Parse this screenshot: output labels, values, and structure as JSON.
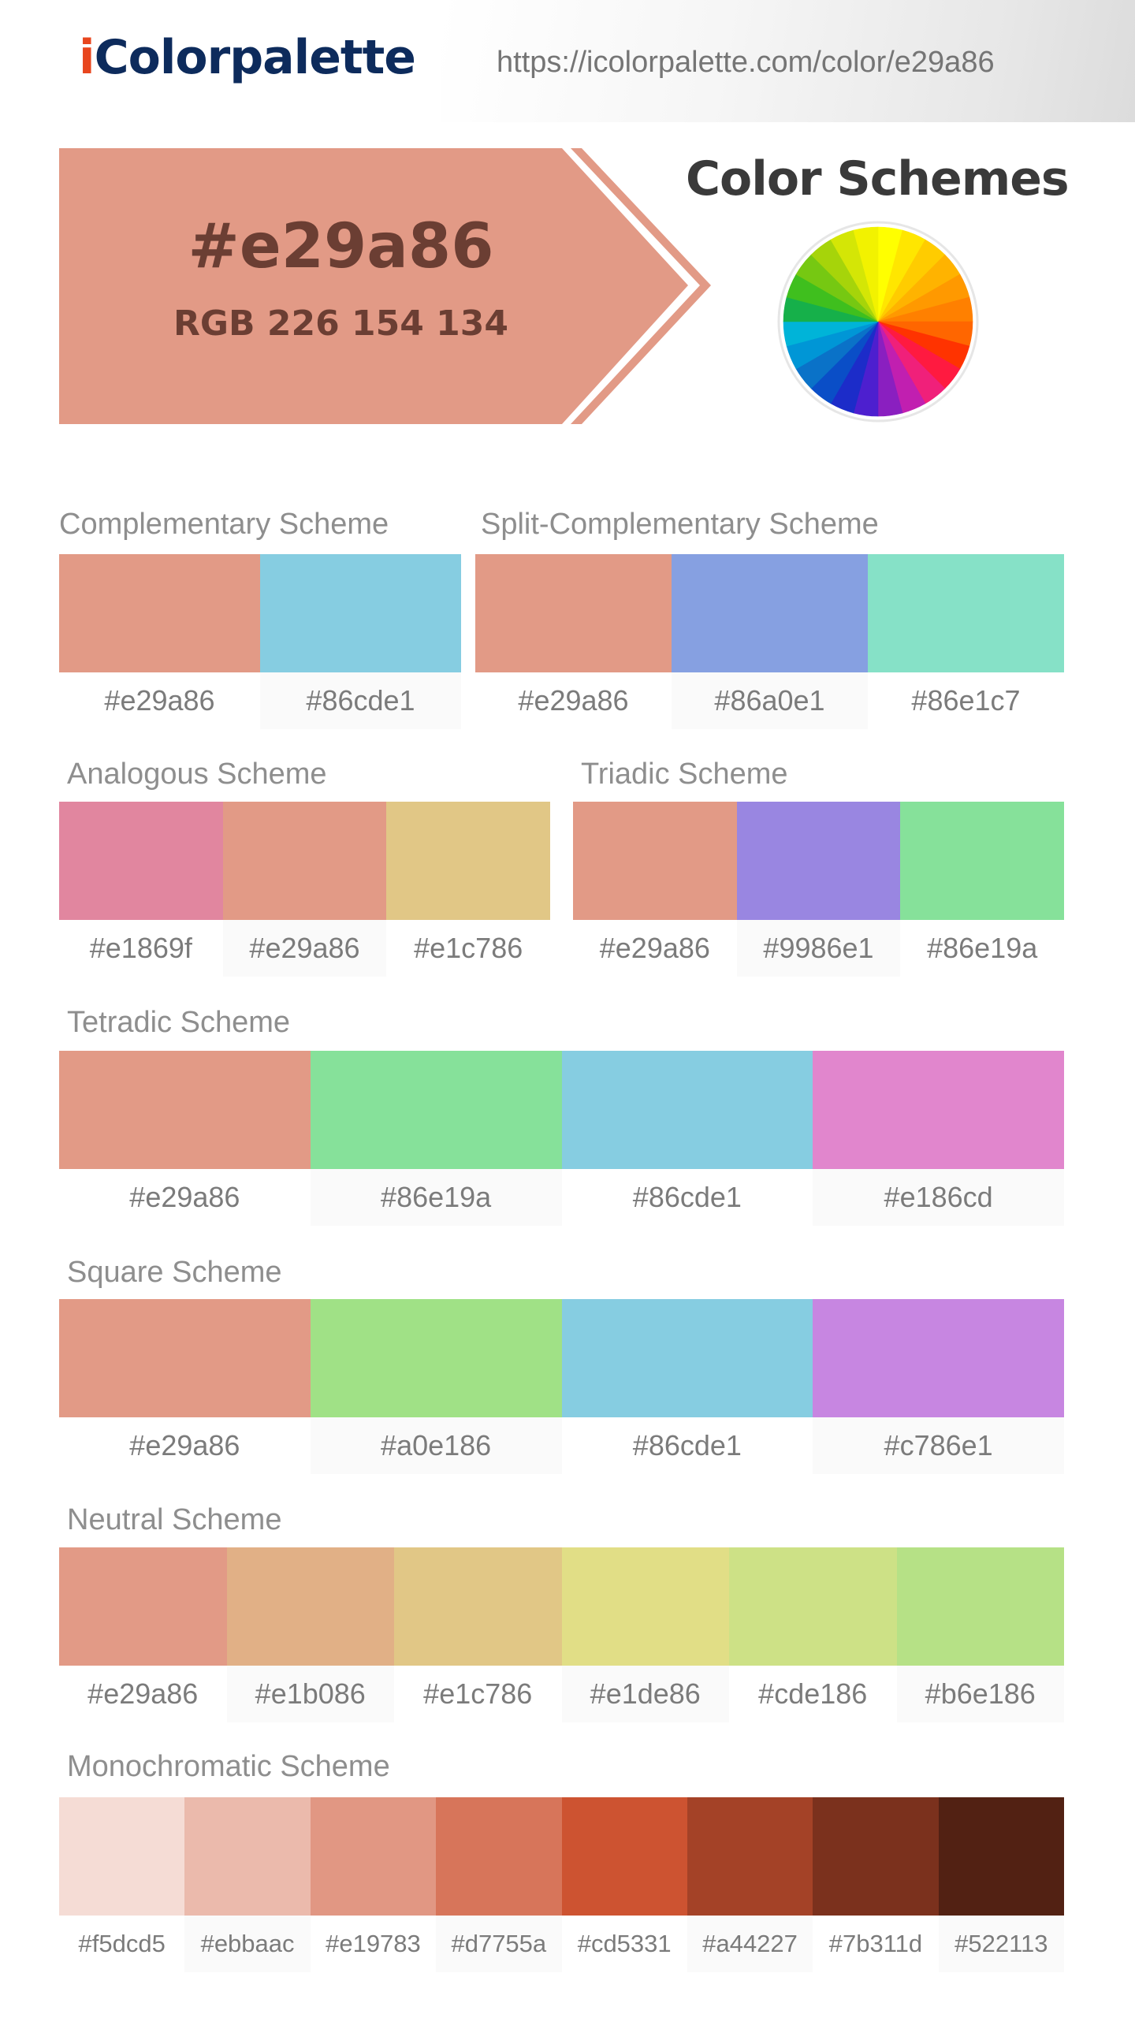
{
  "header": {
    "logo_i": "i",
    "logo_rest": "Colorpalette",
    "url": "https://icolorpalette.com/color/e29a86"
  },
  "hero": {
    "hex": "#e29a86",
    "rgb": "RGB 226 154 134",
    "color": "#e29a86",
    "text_color": "#6b3e33"
  },
  "color_schemes_title": "Color Schemes",
  "wheel_colors": [
    "#ffff00",
    "#ffe600",
    "#ffcc00",
    "#ffb300",
    "#ff9900",
    "#ff8000",
    "#ff6600",
    "#ff3300",
    "#ff1a40",
    "#f0207a",
    "#c11fb0",
    "#8a1fc0",
    "#4d1fcf",
    "#1c2cc9",
    "#0a4ec7",
    "#0a72c8",
    "#0096d6",
    "#00b4d8",
    "#16b04a",
    "#3fbf1e",
    "#76c812",
    "#a6d40a",
    "#d4e606",
    "#f2f200"
  ],
  "complementary": {
    "title": "Complementary Scheme",
    "colors": [
      {
        "hex": "#e29a86"
      },
      {
        "hex": "#86cde1"
      }
    ]
  },
  "split_complementary": {
    "title": "Split-Complementary Scheme",
    "colors": [
      {
        "hex": "#e29a86"
      },
      {
        "hex": "#86a0e1"
      },
      {
        "hex": "#86e1c7"
      }
    ]
  },
  "analogous": {
    "title": "Analogous Scheme",
    "colors": [
      {
        "hex": "#e1869f"
      },
      {
        "hex": "#e29a86"
      },
      {
        "hex": "#e1c786"
      }
    ]
  },
  "triadic": {
    "title": "Triadic Scheme",
    "colors": [
      {
        "hex": "#e29a86"
      },
      {
        "hex": "#9986e1"
      },
      {
        "hex": "#86e19a"
      }
    ]
  },
  "tetradic": {
    "title": "Tetradic Scheme",
    "colors": [
      {
        "hex": "#e29a86"
      },
      {
        "hex": "#86e19a"
      },
      {
        "hex": "#86cde1"
      },
      {
        "hex": "#e186cd"
      }
    ]
  },
  "square": {
    "title": "Square Scheme",
    "colors": [
      {
        "hex": "#e29a86"
      },
      {
        "hex": "#a0e186"
      },
      {
        "hex": "#86cde1"
      },
      {
        "hex": "#c786e1"
      }
    ]
  },
  "neutral": {
    "title": "Neutral Scheme",
    "colors": [
      {
        "hex": "#e29a86"
      },
      {
        "hex": "#e1b086"
      },
      {
        "hex": "#e1c786"
      },
      {
        "hex": "#e1de86"
      },
      {
        "hex": "#cde186"
      },
      {
        "hex": "#b6e186"
      }
    ]
  },
  "monochromatic": {
    "title": "Monochromatic Scheme",
    "colors": [
      {
        "hex": "#f5dcd5"
      },
      {
        "hex": "#ebbaac"
      },
      {
        "hex": "#e19783"
      },
      {
        "hex": "#d7755a"
      },
      {
        "hex": "#cd5331"
      },
      {
        "hex": "#a44227"
      },
      {
        "hex": "#7b311d"
      },
      {
        "hex": "#522113"
      }
    ]
  }
}
